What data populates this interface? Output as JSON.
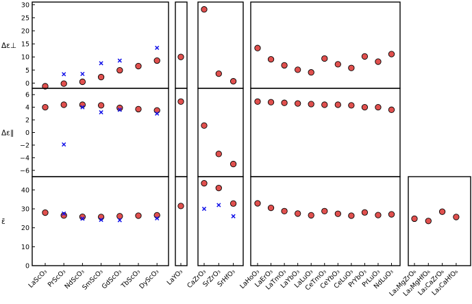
{
  "chart_data": {
    "type": "scatter",
    "colors": {
      "circle_fill": "#e0504e",
      "circle_stroke": "#000000",
      "cross": "#1010e8"
    },
    "groups": [
      {
        "categories": [
          "LaScO₃",
          "PrScO₃",
          "NdScO₃",
          "SmScO₃",
          "GdScO₃",
          "TbScO₃",
          "DyScO₃"
        ]
      },
      {
        "categories": [
          "LaYO₃"
        ]
      },
      {
        "categories": [
          "CaZrO₃",
          "SrZrO₃",
          "SrHfO₃"
        ]
      },
      {
        "categories": [
          "LaHoO₃",
          "LaErO₃",
          "LaTmO₃",
          "LaYbO₃",
          "LaLuO₃",
          "CeTmO₃",
          "CeYbO₃",
          "CeLuO₃",
          "PrYbO₃",
          "PrLuO₃",
          "NdLuO₃"
        ]
      },
      {
        "categories": [
          "La₂MgZrO₆",
          "La₂MgHfO₆",
          "La₂CaZrO₆",
          "La₂CaHfO₆"
        ]
      }
    ],
    "panels": [
      {
        "id": "perp",
        "ylabel": "Δε⊥",
        "ylim": [
          -2,
          31
        ],
        "yticks": [
          0,
          5,
          10,
          15,
          20,
          25,
          30
        ],
        "groups_present": [
          0,
          1,
          2,
          3
        ],
        "series": [
          {
            "marker": "circle",
            "groups": [
              [
                -1.2,
                -0.2,
                0.5,
                2.3,
                4.9,
                6.5,
                8.6
              ],
              [
                10.0
              ],
              [
                28.2,
                3.6,
                0.7
              ],
              [
                13.4,
                9.1,
                6.8,
                5.1,
                4.1,
                9.4,
                7.2,
                5.8,
                10.2,
                8.2,
                11.1
              ]
            ]
          },
          {
            "marker": "cross",
            "groups": [
              [
                null,
                3.4,
                3.5,
                7.6,
                8.6,
                null,
                13.5
              ],
              [],
              [],
              []
            ]
          }
        ]
      },
      {
        "id": "par",
        "ylabel": "Δε∥",
        "ylim": [
          -7,
          7
        ],
        "yticks": [
          -6,
          -4,
          -2,
          0,
          2,
          4,
          6
        ],
        "groups_present": [
          0,
          1,
          2,
          3
        ],
        "series": [
          {
            "marker": "circle",
            "groups": [
              [
                4.0,
                4.4,
                4.4,
                4.3,
                3.9,
                3.7,
                3.5
              ],
              [
                4.9
              ],
              [
                1.1,
                -3.4,
                -5.0
              ],
              [
                4.9,
                4.8,
                4.7,
                4.6,
                4.5,
                4.4,
                4.4,
                4.3,
                4.0,
                4.0,
                3.6
              ]
            ]
          },
          {
            "marker": "cross",
            "groups": [
              [
                null,
                -1.9,
                4.0,
                3.2,
                3.6,
                null,
                3.0
              ],
              [],
              [],
              []
            ]
          }
        ]
      },
      {
        "id": "eps",
        "ylabel": "ε̄",
        "ylim": [
          0,
          47
        ],
        "yticks": [
          0,
          10,
          20,
          30,
          40
        ],
        "groups_present": [
          0,
          1,
          2,
          3,
          4
        ],
        "series": [
          {
            "marker": "circle",
            "groups": [
              [
                28.0,
                26.5,
                25.8,
                25.7,
                26.1,
                26.4,
                26.6
              ],
              [
                31.5
              ],
              [
                43.5,
                41.0,
                32.8
              ],
              [
                32.9,
                30.5,
                28.8,
                27.5,
                26.6,
                28.8,
                27.4,
                26.4,
                28.1,
                26.7,
                27.1
              ],
              [
                24.8,
                23.6,
                28.5,
                25.7
              ]
            ]
          },
          {
            "marker": "cross",
            "groups": [
              [
                null,
                27.5,
                24.8,
                24.2,
                24.0,
                null,
                25.0
              ],
              [],
              [
                30.0,
                32.0,
                26.1
              ],
              [],
              []
            ]
          }
        ]
      }
    ]
  }
}
